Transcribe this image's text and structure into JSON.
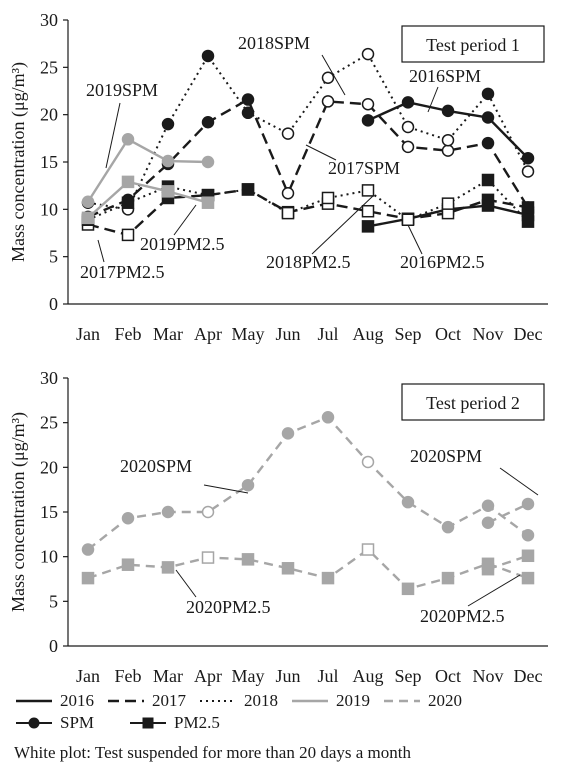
{
  "chart_data": [
    {
      "type": "line",
      "title": "Test period 1",
      "ylabel": "Mass concentration (μg/m³)",
      "ylim": [
        0,
        30
      ],
      "yticks": [
        0,
        5,
        10,
        15,
        20,
        25,
        30
      ],
      "categories": [
        "Jan",
        "Feb",
        "Mar",
        "Apr",
        "May",
        "Jun",
        "Jul",
        "Aug",
        "Sep",
        "Oct",
        "Nov",
        "Dec"
      ],
      "series": [
        {
          "name": "2016SPM",
          "year": "2016",
          "metric": "SPM",
          "values": [
            null,
            null,
            null,
            null,
            null,
            null,
            null,
            19.4,
            21.3,
            20.4,
            19.7,
            15.4
          ],
          "hollow": [
            false,
            false,
            false,
            false,
            false,
            false,
            false,
            false,
            false,
            false,
            false,
            false
          ]
        },
        {
          "name": "2016PM2.5",
          "year": "2016",
          "metric": "PM2.5",
          "values": [
            null,
            null,
            null,
            null,
            null,
            null,
            null,
            8.2,
            9.0,
            10.0,
            10.4,
            9.4
          ],
          "hollow": [
            false,
            false,
            false,
            false,
            false,
            false,
            false,
            false,
            false,
            false,
            false,
            false
          ]
        },
        {
          "name": "2017SPM",
          "year": "2017",
          "metric": "SPM",
          "values": [
            9.2,
            11.0,
            14.8,
            19.2,
            21.6,
            11.7,
            21.4,
            21.1,
            16.6,
            16.2,
            17.0,
            10.2
          ],
          "hollow": [
            false,
            false,
            false,
            false,
            false,
            true,
            true,
            true,
            true,
            true,
            false,
            false
          ]
        },
        {
          "name": "2017PM2.5",
          "year": "2017",
          "metric": "PM2.5",
          "values": [
            8.4,
            7.3,
            11.2,
            11.5,
            12.1,
            9.7,
            10.6,
            9.8,
            9.0,
            9.6,
            11.0,
            10.2
          ],
          "hollow": [
            true,
            true,
            false,
            false,
            false,
            true,
            true,
            true,
            true,
            true,
            false,
            false
          ]
        },
        {
          "name": "2018SPM",
          "year": "2018",
          "metric": "SPM",
          "values": [
            10.7,
            10.0,
            19.0,
            26.2,
            20.2,
            18.0,
            23.9,
            26.4,
            18.7,
            17.3,
            22.2,
            14.0
          ],
          "hollow": [
            false,
            true,
            false,
            false,
            false,
            true,
            true,
            true,
            true,
            true,
            false,
            true
          ]
        },
        {
          "name": "2018PM2.5",
          "year": "2018",
          "metric": "PM2.5",
          "values": [
            8.9,
            10.7,
            12.4,
            11.5,
            12.1,
            9.6,
            11.2,
            12.0,
            8.9,
            10.6,
            13.1,
            8.7
          ],
          "hollow": [
            false,
            false,
            false,
            false,
            false,
            true,
            true,
            true,
            true,
            true,
            false,
            false
          ]
        },
        {
          "name": "2019SPM",
          "year": "2019",
          "metric": "SPM",
          "values": [
            10.8,
            17.4,
            15.1,
            15.0,
            null,
            null,
            null,
            null,
            null,
            null,
            null,
            null
          ],
          "hollow": [
            false,
            false,
            false,
            false,
            false,
            false,
            false,
            false,
            false,
            false,
            false,
            false
          ]
        },
        {
          "name": "2019PM2.5",
          "year": "2019",
          "metric": "PM2.5",
          "values": [
            9.1,
            12.9,
            11.9,
            10.7,
            null,
            null,
            null,
            null,
            null,
            null,
            null,
            null
          ],
          "hollow": [
            false,
            false,
            false,
            false,
            false,
            false,
            false,
            false,
            false,
            false,
            false,
            false
          ]
        }
      ],
      "annotations": [
        "2018SPM",
        "2019SPM",
        "2016SPM",
        "2017SPM",
        "2019PM2.5",
        "2017PM2.5",
        "2018PM2.5",
        "2016PM2.5"
      ]
    },
    {
      "type": "line",
      "title": "Test period 2",
      "ylabel": "Mass concentration (μg/m³)",
      "ylim": [
        0,
        30
      ],
      "yticks": [
        0,
        5,
        10,
        15,
        20,
        25,
        30
      ],
      "categories": [
        "Jan",
        "Feb",
        "Mar",
        "Apr",
        "May",
        "Jun",
        "Jul",
        "Aug",
        "Sep",
        "Oct",
        "Nov",
        "Dec"
      ],
      "series": [
        {
          "name": "2020SPM",
          "year": "2020",
          "metric": "SPM",
          "values": [
            10.8,
            14.3,
            15.0,
            15.0,
            18.0,
            23.8,
            25.6,
            20.6,
            16.1,
            13.3,
            15.7,
            12.4
          ],
          "hollow": [
            false,
            false,
            false,
            true,
            false,
            false,
            false,
            true,
            false,
            false,
            false,
            false
          ]
        },
        {
          "name": "2020PM2.5",
          "year": "2020",
          "metric": "PM2.5",
          "values": [
            7.6,
            9.1,
            8.8,
            9.9,
            9.7,
            8.7,
            7.6,
            10.8,
            6.4,
            7.6,
            9.2,
            7.6
          ],
          "hollow": [
            false,
            false,
            false,
            true,
            false,
            false,
            false,
            true,
            false,
            false,
            false,
            false
          ]
        },
        {
          "name": "2020SPM-Dec",
          "year": "2020",
          "metric": "SPM",
          "values": [
            null,
            null,
            null,
            null,
            null,
            null,
            null,
            null,
            null,
            null,
            13.8,
            15.9
          ],
          "hollow": [
            false,
            false,
            false,
            false,
            false,
            false,
            false,
            false,
            false,
            false,
            false,
            false
          ]
        },
        {
          "name": "2020PM2.5-Dec",
          "year": "2020",
          "metric": "PM2.5",
          "values": [
            null,
            null,
            null,
            null,
            null,
            null,
            null,
            null,
            null,
            null,
            8.6,
            10.1
          ],
          "hollow": [
            false,
            false,
            false,
            false,
            false,
            false,
            false,
            false,
            false,
            false,
            false,
            false
          ]
        }
      ],
      "annotations": [
        "2020SPM",
        "2020SPM",
        "2020PM2.5",
        "2020PM2.5"
      ]
    }
  ],
  "legend": {
    "years": [
      "2016",
      "2017",
      "2018",
      "2019",
      "2020"
    ],
    "markers": [
      "SPM",
      "PM2.5"
    ],
    "note": "White plot: Test suspended for more than 20 days a month"
  },
  "colors": {
    "2016": "#1a1a1a",
    "2017": "#1a1a1a",
    "2018": "#1a1a1a",
    "2019": "#a6a6a6",
    "2020": "#a6a6a6"
  }
}
